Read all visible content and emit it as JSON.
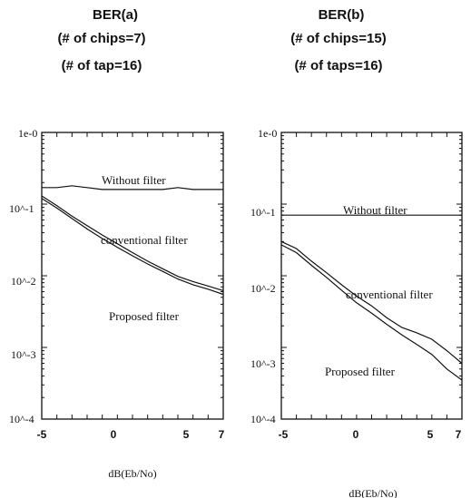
{
  "chart_data": [
    {
      "type": "line",
      "heading": [
        "BER(a)",
        "(# of chips=7)",
        "(# of tap=16)"
      ],
      "xlabel": "dB(Eb/No)",
      "ylabel": "",
      "xlim": [
        -5,
        7
      ],
      "ylim": [
        0.0001,
        1
      ],
      "yscale": "log",
      "grid": false,
      "x_ticks": [
        "-5",
        "0",
        "5",
        "7"
      ],
      "y_ticks": [
        "1e-0",
        "10^-1",
        "10^-2",
        "10^-3",
        "10^-4"
      ],
      "annotations": [
        "Without filter",
        "conventional filter",
        "Proposed filter"
      ],
      "series": [
        {
          "x": [
            -5,
            -4,
            -3,
            -2,
            -1,
            0,
            1,
            2,
            3,
            4,
            5,
            6,
            7
          ],
          "values": [
            0.17,
            0.17,
            0.18,
            0.17,
            0.16,
            0.16,
            0.16,
            0.16,
            0.16,
            0.17,
            0.16,
            0.16,
            0.16
          ]
        },
        {
          "x": [
            -5,
            -4,
            -3,
            -2,
            -1,
            0,
            1,
            2,
            3,
            4,
            5,
            6,
            7
          ],
          "values": [
            0.13,
            0.095,
            0.068,
            0.05,
            0.037,
            0.028,
            0.021,
            0.016,
            0.0125,
            0.0098,
            0.0083,
            0.0072,
            0.0062
          ]
        },
        {
          "x": [
            -5,
            -4,
            -3,
            -2,
            -1,
            0,
            1,
            2,
            3,
            4,
            5,
            6,
            7
          ],
          "values": [
            0.12,
            0.088,
            0.063,
            0.045,
            0.033,
            0.025,
            0.019,
            0.0146,
            0.0115,
            0.009,
            0.0075,
            0.0065,
            0.0055
          ]
        }
      ]
    },
    {
      "type": "line",
      "heading": [
        "BER(b)",
        "(# of chips=15)",
        "(# of taps=16)"
      ],
      "xlabel": "dB(Eb/No)",
      "ylabel": "",
      "xlim": [
        -5,
        7
      ],
      "ylim": [
        0.0001,
        1
      ],
      "yscale": "log",
      "grid": false,
      "x_ticks": [
        "-5",
        "0",
        "5",
        "7"
      ],
      "y_ticks": [
        "1e-0",
        "10^-1",
        "10^-2",
        "10^-3",
        "10^-4"
      ],
      "annotations": [
        "Without filter",
        "conventional filter",
        "Proposed filter"
      ],
      "series": [
        {
          "x": [
            -5,
            -4,
            -3,
            -2,
            -1,
            0,
            1,
            2,
            3,
            4,
            5,
            6,
            7
          ],
          "values": [
            0.07,
            0.07,
            0.07,
            0.07,
            0.07,
            0.07,
            0.07,
            0.07,
            0.07,
            0.07,
            0.07,
            0.07,
            0.07
          ]
        },
        {
          "x": [
            -5,
            -4,
            -3,
            -2,
            -1,
            0,
            1,
            2,
            3,
            4,
            5,
            6,
            7
          ],
          "values": [
            0.03,
            0.024,
            0.016,
            0.011,
            0.0075,
            0.0052,
            0.0038,
            0.0026,
            0.0019,
            0.0016,
            0.0013,
            0.0009,
            0.0006
          ]
        },
        {
          "x": [
            -5,
            -4,
            -3,
            -2,
            -1,
            0,
            1,
            2,
            3,
            4,
            5,
            6,
            7
          ],
          "values": [
            0.027,
            0.021,
            0.014,
            0.0095,
            0.0063,
            0.0042,
            0.003,
            0.0021,
            0.0015,
            0.0011,
            0.0008,
            0.0005,
            0.00035
          ]
        }
      ]
    }
  ]
}
